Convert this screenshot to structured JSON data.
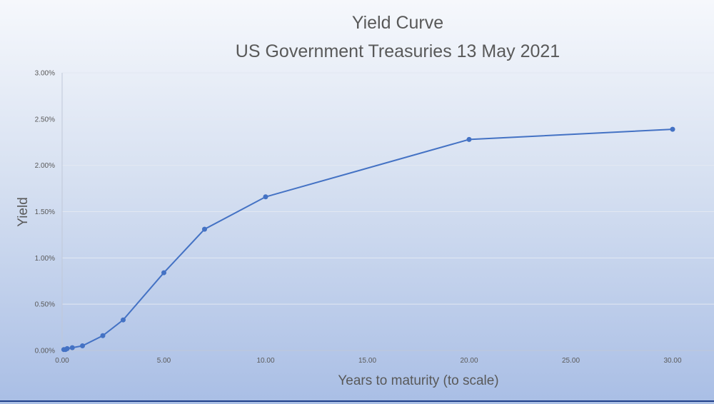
{
  "chart_data": {
    "type": "scatter",
    "title": "Yield Curve",
    "subtitle": "US Government Treasuries 13 May 2021",
    "xlabel": "Years to maturity (to scale)",
    "ylabel": "Yield",
    "xlim": [
      0,
      31
    ],
    "ylim": [
      0,
      0.03
    ],
    "x_ticks": [
      0,
      5,
      10,
      15,
      20,
      25,
      30
    ],
    "x_tick_labels": [
      "0.00",
      "5.00",
      "10.00",
      "15.00",
      "20.00",
      "25.00",
      "30.00"
    ],
    "y_ticks": [
      0,
      0.005,
      0.01,
      0.015,
      0.02,
      0.025,
      0.03
    ],
    "y_tick_labels": [
      "0.00%",
      "0.50%",
      "1.00%",
      "1.50%",
      "2.00%",
      "2.50%",
      "3.00%"
    ],
    "grid": true,
    "legend": false,
    "series": [
      {
        "color": "#4472c4",
        "x": [
          0.083,
          0.167,
          0.25,
          0.5,
          1,
          2,
          3,
          5,
          7,
          10,
          20,
          30
        ],
        "y": [
          0.0001,
          0.0001,
          0.0002,
          0.0003,
          0.0005,
          0.0016,
          0.0033,
          0.0084,
          0.0131,
          0.0166,
          0.0228,
          0.0239
        ]
      }
    ]
  }
}
